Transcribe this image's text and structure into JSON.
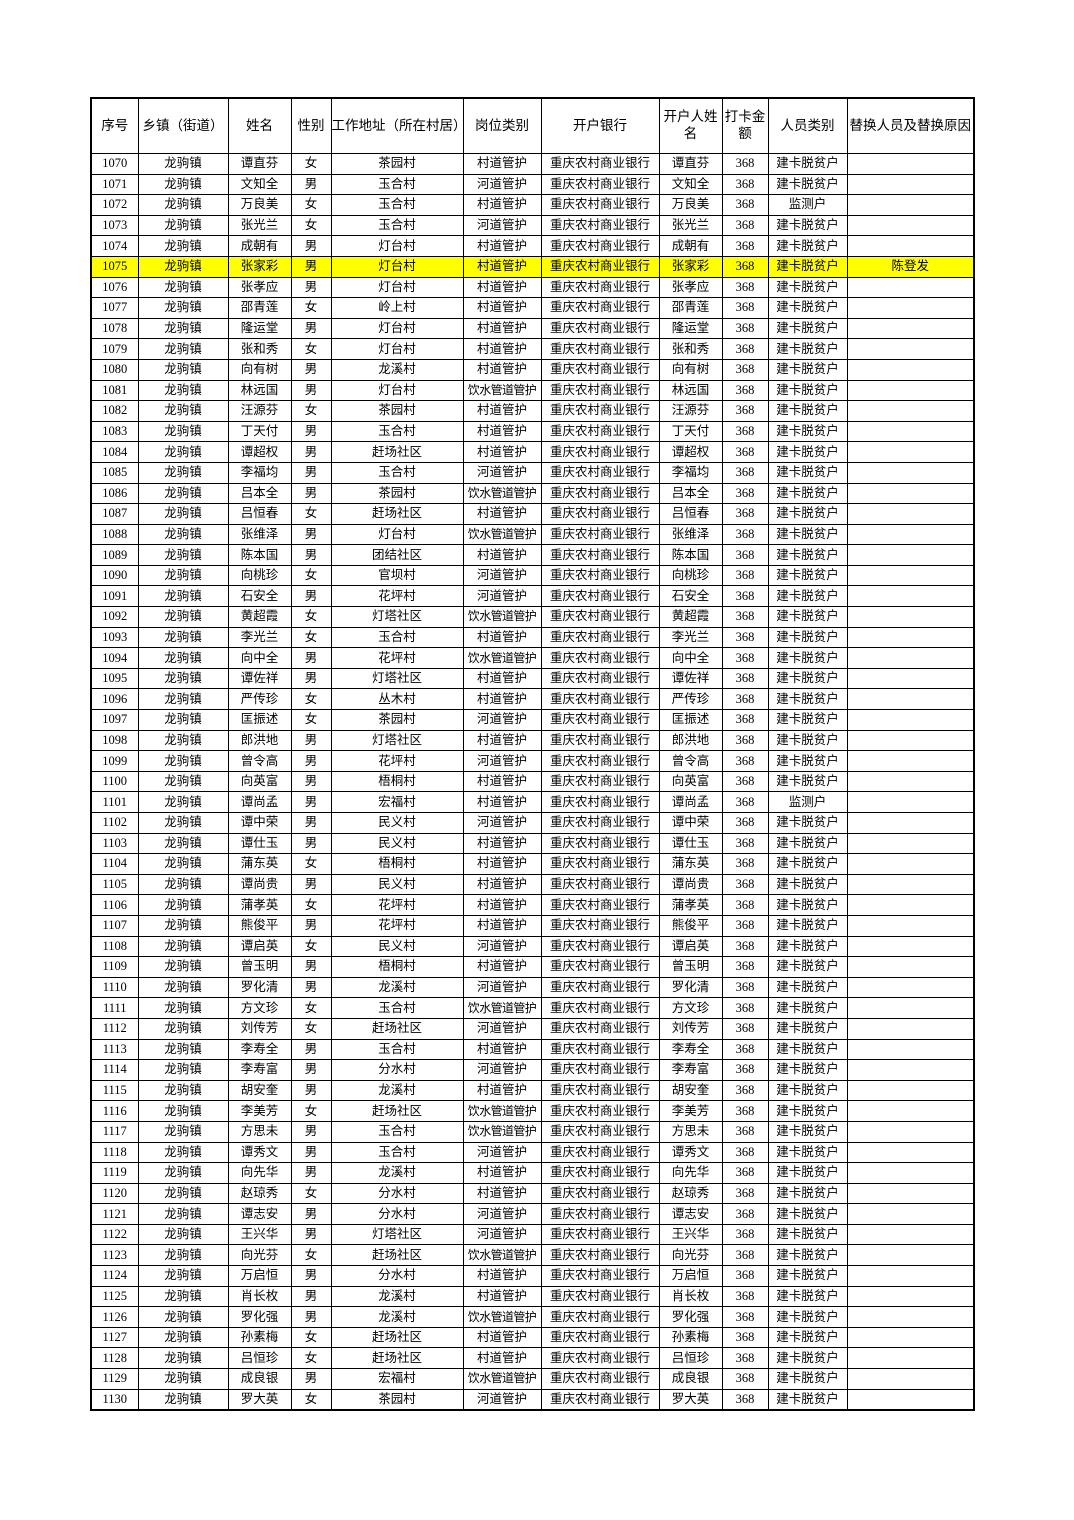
{
  "table": {
    "headers": [
      "序号",
      "乡镇（街道）",
      "姓名",
      "性别",
      "工作地址（所在村居）",
      "岗位类别",
      "开户银行",
      "开户人姓名",
      "打卡金额",
      "人员类别",
      "替换人员及替换原因"
    ],
    "highlight_color": "#ffff00",
    "highlighted_row": "1075",
    "rows": [
      [
        "1070",
        "龙驹镇",
        "谭直芬",
        "女",
        "茶园村",
        "村道管护",
        "重庆农村商业银行",
        "谭直芬",
        "368",
        "建卡脱贫户",
        ""
      ],
      [
        "1071",
        "龙驹镇",
        "文知全",
        "男",
        "玉合村",
        "河道管护",
        "重庆农村商业银行",
        "文知全",
        "368",
        "建卡脱贫户",
        ""
      ],
      [
        "1072",
        "龙驹镇",
        "万良美",
        "女",
        "玉合村",
        "村道管护",
        "重庆农村商业银行",
        "万良美",
        "368",
        "监测户",
        ""
      ],
      [
        "1073",
        "龙驹镇",
        "张光兰",
        "女",
        "玉合村",
        "河道管护",
        "重庆农村商业银行",
        "张光兰",
        "368",
        "建卡脱贫户",
        ""
      ],
      [
        "1074",
        "龙驹镇",
        "成朝有",
        "男",
        "灯台村",
        "村道管护",
        "重庆农村商业银行",
        "成朝有",
        "368",
        "建卡脱贫户",
        ""
      ],
      [
        "1075",
        "龙驹镇",
        "张家彩",
        "男",
        "灯台村",
        "村道管护",
        "重庆农村商业银行",
        "张家彩",
        "368",
        "建卡脱贫户",
        "陈登发"
      ],
      [
        "1076",
        "龙驹镇",
        "张孝应",
        "男",
        "灯台村",
        "村道管护",
        "重庆农村商业银行",
        "张孝应",
        "368",
        "建卡脱贫户",
        ""
      ],
      [
        "1077",
        "龙驹镇",
        "邵青莲",
        "女",
        "岭上村",
        "村道管护",
        "重庆农村商业银行",
        "邵青莲",
        "368",
        "建卡脱贫户",
        ""
      ],
      [
        "1078",
        "龙驹镇",
        "隆运堂",
        "男",
        "灯台村",
        "村道管护",
        "重庆农村商业银行",
        "隆运堂",
        "368",
        "建卡脱贫户",
        ""
      ],
      [
        "1079",
        "龙驹镇",
        "张和秀",
        "女",
        "灯台村",
        "村道管护",
        "重庆农村商业银行",
        "张和秀",
        "368",
        "建卡脱贫户",
        ""
      ],
      [
        "1080",
        "龙驹镇",
        "向有树",
        "男",
        "龙溪村",
        "村道管护",
        "重庆农村商业银行",
        "向有树",
        "368",
        "建卡脱贫户",
        ""
      ],
      [
        "1081",
        "龙驹镇",
        "林远国",
        "男",
        "灯台村",
        "饮水管道管护",
        "重庆农村商业银行",
        "林远国",
        "368",
        "建卡脱贫户",
        ""
      ],
      [
        "1082",
        "龙驹镇",
        "汪源芬",
        "女",
        "茶园村",
        "村道管护",
        "重庆农村商业银行",
        "汪源芬",
        "368",
        "建卡脱贫户",
        ""
      ],
      [
        "1083",
        "龙驹镇",
        "丁天付",
        "男",
        "玉合村",
        "村道管护",
        "重庆农村商业银行",
        "丁天付",
        "368",
        "建卡脱贫户",
        ""
      ],
      [
        "1084",
        "龙驹镇",
        "谭超权",
        "男",
        "赶场社区",
        "村道管护",
        "重庆农村商业银行",
        "谭超权",
        "368",
        "建卡脱贫户",
        ""
      ],
      [
        "1085",
        "龙驹镇",
        "李福均",
        "男",
        "玉合村",
        "河道管护",
        "重庆农村商业银行",
        "李福均",
        "368",
        "建卡脱贫户",
        ""
      ],
      [
        "1086",
        "龙驹镇",
        "吕本全",
        "男",
        "茶园村",
        "饮水管道管护",
        "重庆农村商业银行",
        "吕本全",
        "368",
        "建卡脱贫户",
        ""
      ],
      [
        "1087",
        "龙驹镇",
        "吕恒春",
        "女",
        "赶场社区",
        "村道管护",
        "重庆农村商业银行",
        "吕恒春",
        "368",
        "建卡脱贫户",
        ""
      ],
      [
        "1088",
        "龙驹镇",
        "张维泽",
        "男",
        "灯台村",
        "饮水管道管护",
        "重庆农村商业银行",
        "张维泽",
        "368",
        "建卡脱贫户",
        ""
      ],
      [
        "1089",
        "龙驹镇",
        "陈本国",
        "男",
        "团结社区",
        "村道管护",
        "重庆农村商业银行",
        "陈本国",
        "368",
        "建卡脱贫户",
        ""
      ],
      [
        "1090",
        "龙驹镇",
        "向桃珍",
        "女",
        "官坝村",
        "河道管护",
        "重庆农村商业银行",
        "向桃珍",
        "368",
        "建卡脱贫户",
        ""
      ],
      [
        "1091",
        "龙驹镇",
        "石安全",
        "男",
        "花坪村",
        "河道管护",
        "重庆农村商业银行",
        "石安全",
        "368",
        "建卡脱贫户",
        ""
      ],
      [
        "1092",
        "龙驹镇",
        "黄超霞",
        "女",
        "灯塔社区",
        "饮水管道管护",
        "重庆农村商业银行",
        "黄超霞",
        "368",
        "建卡脱贫户",
        ""
      ],
      [
        "1093",
        "龙驹镇",
        "李光兰",
        "女",
        "玉合村",
        "村道管护",
        "重庆农村商业银行",
        "李光兰",
        "368",
        "建卡脱贫户",
        ""
      ],
      [
        "1094",
        "龙驹镇",
        "向中全",
        "男",
        "花坪村",
        "饮水管道管护",
        "重庆农村商业银行",
        "向中全",
        "368",
        "建卡脱贫户",
        ""
      ],
      [
        "1095",
        "龙驹镇",
        "谭佐祥",
        "男",
        "灯塔社区",
        "村道管护",
        "重庆农村商业银行",
        "谭佐祥",
        "368",
        "建卡脱贫户",
        ""
      ],
      [
        "1096",
        "龙驹镇",
        "严传珍",
        "女",
        "丛木村",
        "村道管护",
        "重庆农村商业银行",
        "严传珍",
        "368",
        "建卡脱贫户",
        ""
      ],
      [
        "1097",
        "龙驹镇",
        "匡振述",
        "女",
        "茶园村",
        "河道管护",
        "重庆农村商业银行",
        "匡振述",
        "368",
        "建卡脱贫户",
        ""
      ],
      [
        "1098",
        "龙驹镇",
        "郎洪地",
        "男",
        "灯塔社区",
        "村道管护",
        "重庆农村商业银行",
        "郎洪地",
        "368",
        "建卡脱贫户",
        ""
      ],
      [
        "1099",
        "龙驹镇",
        "曾令高",
        "男",
        "花坪村",
        "河道管护",
        "重庆农村商业银行",
        "曾令高",
        "368",
        "建卡脱贫户",
        ""
      ],
      [
        "1100",
        "龙驹镇",
        "向英富",
        "男",
        "梧桐村",
        "村道管护",
        "重庆农村商业银行",
        "向英富",
        "368",
        "建卡脱贫户",
        ""
      ],
      [
        "1101",
        "龙驹镇",
        "谭尚孟",
        "男",
        "宏福村",
        "村道管护",
        "重庆农村商业银行",
        "谭尚孟",
        "368",
        "监测户",
        ""
      ],
      [
        "1102",
        "龙驹镇",
        "谭中荣",
        "男",
        "民义村",
        "河道管护",
        "重庆农村商业银行",
        "谭中荣",
        "368",
        "建卡脱贫户",
        ""
      ],
      [
        "1103",
        "龙驹镇",
        "谭仕玉",
        "男",
        "民义村",
        "村道管护",
        "重庆农村商业银行",
        "谭仕玉",
        "368",
        "建卡脱贫户",
        ""
      ],
      [
        "1104",
        "龙驹镇",
        "蒲东英",
        "女",
        "梧桐村",
        "村道管护",
        "重庆农村商业银行",
        "蒲东英",
        "368",
        "建卡脱贫户",
        ""
      ],
      [
        "1105",
        "龙驹镇",
        "谭尚贵",
        "男",
        "民义村",
        "村道管护",
        "重庆农村商业银行",
        "谭尚贵",
        "368",
        "建卡脱贫户",
        ""
      ],
      [
        "1106",
        "龙驹镇",
        "蒲孝英",
        "女",
        "花坪村",
        "村道管护",
        "重庆农村商业银行",
        "蒲孝英",
        "368",
        "建卡脱贫户",
        ""
      ],
      [
        "1107",
        "龙驹镇",
        "熊俊平",
        "男",
        "花坪村",
        "村道管护",
        "重庆农村商业银行",
        "熊俊平",
        "368",
        "建卡脱贫户",
        ""
      ],
      [
        "1108",
        "龙驹镇",
        "谭启英",
        "女",
        "民义村",
        "河道管护",
        "重庆农村商业银行",
        "谭启英",
        "368",
        "建卡脱贫户",
        ""
      ],
      [
        "1109",
        "龙驹镇",
        "曾玉明",
        "男",
        "梧桐村",
        "村道管护",
        "重庆农村商业银行",
        "曾玉明",
        "368",
        "建卡脱贫户",
        ""
      ],
      [
        "1110",
        "龙驹镇",
        "罗化清",
        "男",
        "龙溪村",
        "河道管护",
        "重庆农村商业银行",
        "罗化清",
        "368",
        "建卡脱贫户",
        ""
      ],
      [
        "1111",
        "龙驹镇",
        "方文珍",
        "女",
        "玉合村",
        "饮水管道管护",
        "重庆农村商业银行",
        "方文珍",
        "368",
        "建卡脱贫户",
        ""
      ],
      [
        "1112",
        "龙驹镇",
        "刘传芳",
        "女",
        "赶场社区",
        "河道管护",
        "重庆农村商业银行",
        "刘传芳",
        "368",
        "建卡脱贫户",
        ""
      ],
      [
        "1113",
        "龙驹镇",
        "李寿全",
        "男",
        "玉合村",
        "村道管护",
        "重庆农村商业银行",
        "李寿全",
        "368",
        "建卡脱贫户",
        ""
      ],
      [
        "1114",
        "龙驹镇",
        "李寿富",
        "男",
        "分水村",
        "河道管护",
        "重庆农村商业银行",
        "李寿富",
        "368",
        "建卡脱贫户",
        ""
      ],
      [
        "1115",
        "龙驹镇",
        "胡安奎",
        "男",
        "龙溪村",
        "村道管护",
        "重庆农村商业银行",
        "胡安奎",
        "368",
        "建卡脱贫户",
        ""
      ],
      [
        "1116",
        "龙驹镇",
        "李美芳",
        "女",
        "赶场社区",
        "饮水管道管护",
        "重庆农村商业银行",
        "李美芳",
        "368",
        "建卡脱贫户",
        ""
      ],
      [
        "1117",
        "龙驹镇",
        "方思未",
        "男",
        "玉合村",
        "饮水管道管护",
        "重庆农村商业银行",
        "方思未",
        "368",
        "建卡脱贫户",
        ""
      ],
      [
        "1118",
        "龙驹镇",
        "谭秀文",
        "男",
        "玉合村",
        "河道管护",
        "重庆农村商业银行",
        "谭秀文",
        "368",
        "建卡脱贫户",
        ""
      ],
      [
        "1119",
        "龙驹镇",
        "向先华",
        "男",
        "龙溪村",
        "村道管护",
        "重庆农村商业银行",
        "向先华",
        "368",
        "建卡脱贫户",
        ""
      ],
      [
        "1120",
        "龙驹镇",
        "赵琼秀",
        "女",
        "分水村",
        "村道管护",
        "重庆农村商业银行",
        "赵琼秀",
        "368",
        "建卡脱贫户",
        ""
      ],
      [
        "1121",
        "龙驹镇",
        "谭志安",
        "男",
        "分水村",
        "河道管护",
        "重庆农村商业银行",
        "谭志安",
        "368",
        "建卡脱贫户",
        ""
      ],
      [
        "1122",
        "龙驹镇",
        "王兴华",
        "男",
        "灯塔社区",
        "河道管护",
        "重庆农村商业银行",
        "王兴华",
        "368",
        "建卡脱贫户",
        ""
      ],
      [
        "1123",
        "龙驹镇",
        "向光芬",
        "女",
        "赶场社区",
        "饮水管道管护",
        "重庆农村商业银行",
        "向光芬",
        "368",
        "建卡脱贫户",
        ""
      ],
      [
        "1124",
        "龙驹镇",
        "万启恒",
        "男",
        "分水村",
        "村道管护",
        "重庆农村商业银行",
        "万启恒",
        "368",
        "建卡脱贫户",
        ""
      ],
      [
        "1125",
        "龙驹镇",
        "肖长枚",
        "男",
        "龙溪村",
        "村道管护",
        "重庆农村商业银行",
        "肖长枚",
        "368",
        "建卡脱贫户",
        ""
      ],
      [
        "1126",
        "龙驹镇",
        "罗化强",
        "男",
        "龙溪村",
        "饮水管道管护",
        "重庆农村商业银行",
        "罗化强",
        "368",
        "建卡脱贫户",
        ""
      ],
      [
        "1127",
        "龙驹镇",
        "孙素梅",
        "女",
        "赶场社区",
        "村道管护",
        "重庆农村商业银行",
        "孙素梅",
        "368",
        "建卡脱贫户",
        ""
      ],
      [
        "1128",
        "龙驹镇",
        "吕恒珍",
        "女",
        "赶场社区",
        "村道管护",
        "重庆农村商业银行",
        "吕恒珍",
        "368",
        "建卡脱贫户",
        ""
      ],
      [
        "1129",
        "龙驹镇",
        "成良银",
        "男",
        "宏福村",
        "饮水管道管护",
        "重庆农村商业银行",
        "成良银",
        "368",
        "建卡脱贫户",
        ""
      ],
      [
        "1130",
        "龙驹镇",
        "罗大英",
        "女",
        "茶园村",
        "河道管护",
        "重庆农村商业银行",
        "罗大英",
        "368",
        "建卡脱贫户",
        ""
      ]
    ]
  }
}
